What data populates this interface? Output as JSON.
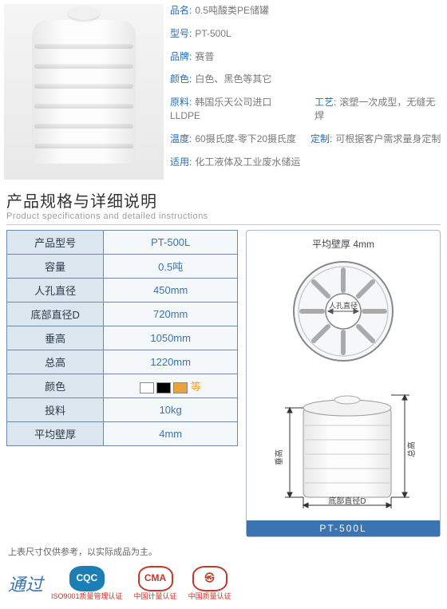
{
  "info": {
    "name_lbl": "品名:",
    "name": "0.5吨酸类PE储罐",
    "model_lbl": "型号:",
    "model": "PT-500L",
    "brand_lbl": "品牌:",
    "brand": "赛普",
    "color_lbl": "颜色:",
    "color": "白色、黑色等其它",
    "material_lbl": "原料:",
    "material": "韩国乐天公司进口LLDPE",
    "process_lbl": "工艺:",
    "process": "滚塑一次成型，无缝无焊",
    "temp_lbl": "温度:",
    "temp": "60摄氏度-零下20摄氏度",
    "custom_lbl": "定制:",
    "custom": "可根据客户需求量身定制",
    "use_lbl": "适用:",
    "use": "化工液体及工业废水储运"
  },
  "section": {
    "zh": "产品规格与详细说明",
    "en": "Product specifications and detailed instructions"
  },
  "spec": {
    "rows": [
      {
        "k": "产品型号",
        "v": "PT-500L"
      },
      {
        "k": "容量",
        "v": "0.5吨"
      },
      {
        "k": "人孔直径",
        "v": "450mm"
      },
      {
        "k": "底部直径D",
        "v": "720mm"
      },
      {
        "k": "垂高",
        "v": "1050mm"
      },
      {
        "k": "总高",
        "v": "1220mm"
      },
      {
        "k": "颜色",
        "v": "__SWATCHES__"
      },
      {
        "k": "投料",
        "v": "10kg"
      },
      {
        "k": "平均壁厚",
        "v": "4mm"
      }
    ],
    "swatch_colors": [
      "#ffffff",
      "#000000",
      "#e6a23c"
    ],
    "swatch_suffix": "等"
  },
  "diagram": {
    "wall_label": "平均壁厚  4mm",
    "manhole_label": "人孔直径",
    "vheight_label": "垂高",
    "theight_label": "总高",
    "bottom_label": "底部直径D",
    "model_tag": "PT-500L"
  },
  "note": "上表尺寸仅供参考，以实际成品为主。",
  "certs": {
    "lead": "通过",
    "items": [
      {
        "badge_text": "CQC",
        "badge_bg": "#1b7fb5",
        "badge_fg": "#ffffff",
        "line": "ISO9001质量管理认证"
      },
      {
        "badge_text": "CMA",
        "badge_bg": "#ffffff",
        "badge_fg": "#c0392b",
        "line": "中国计量认证",
        "border": "#c0392b"
      },
      {
        "badge_text": "㉿",
        "badge_bg": "#ffffff",
        "badge_fg": "#c0392b",
        "line": "中国质量认证",
        "border": "#c0392b"
      }
    ]
  },
  "colors": {
    "accent": "#3b74b0",
    "label": "#2a6db2",
    "border": "#6c8aa8"
  }
}
